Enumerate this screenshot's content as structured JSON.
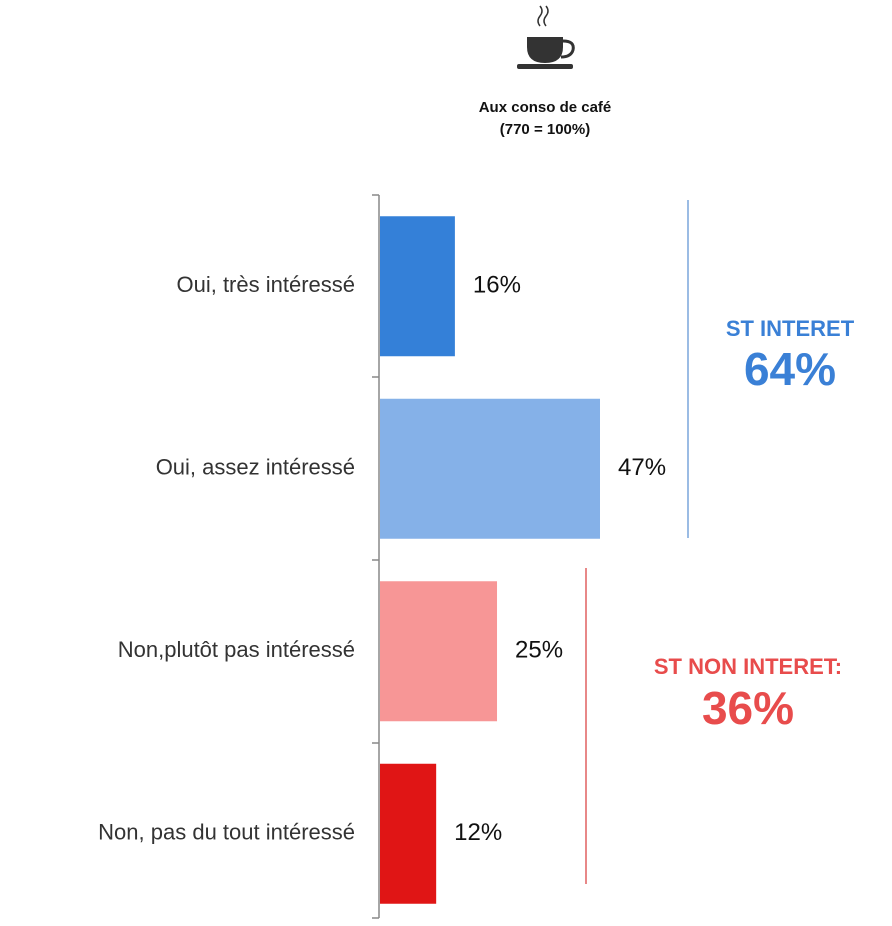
{
  "chart_data": {
    "type": "bar",
    "orientation": "horizontal",
    "title": "Aux conso de café",
    "subtitle": "(770 = 100%)",
    "categories": [
      "Oui, très intéressé",
      "Oui, assez intéressé",
      "Non,plutôt pas intéressé",
      "Non, pas du tout intéressé"
    ],
    "values": [
      16,
      47,
      25,
      12
    ],
    "value_labels": [
      "16%",
      "47%",
      "25%",
      "12%"
    ],
    "colors": [
      "#3480d8",
      "#85b1e8",
      "#f79696",
      "#e01515"
    ],
    "annotations": [
      {
        "label": "ST INTERET",
        "value_text": "64%",
        "color": "#3a80d6"
      },
      {
        "label": "ST NON INTERET:",
        "value_text": "36%",
        "color": "#e84c4c"
      }
    ]
  }
}
